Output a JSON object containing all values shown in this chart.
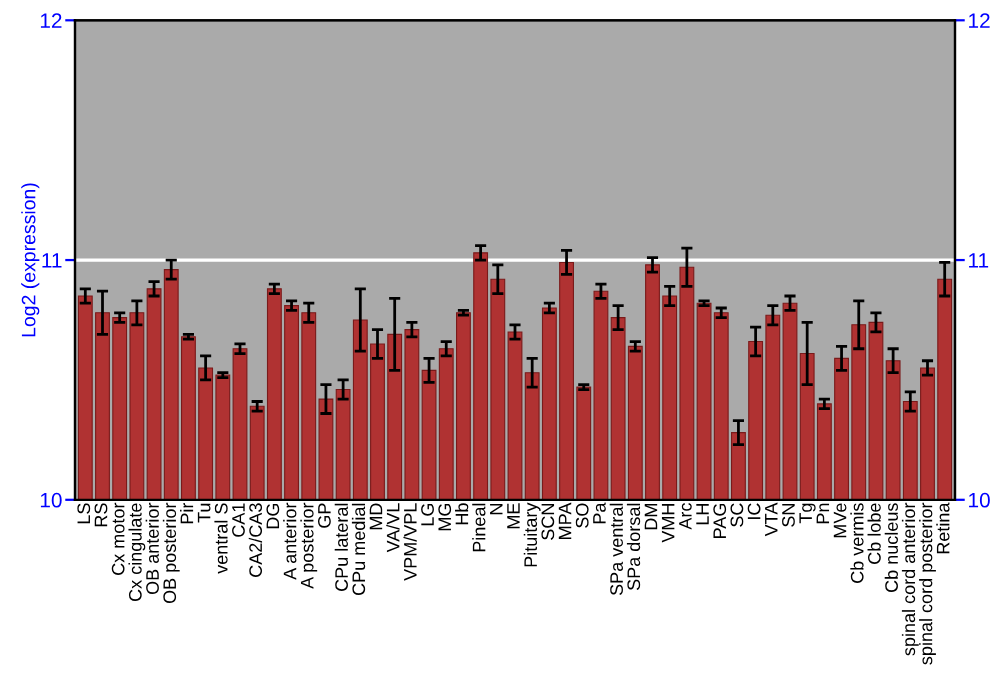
{
  "chart_data": {
    "type": "bar",
    "ylabel": "Log2 (expression)",
    "categories": [
      "LS",
      "RS",
      "Cx motor",
      "Cx cingulate",
      "OB anterior",
      "OB posterior",
      "Pir",
      "Tu",
      "ventral S",
      "CA1",
      "CA2/CA3",
      "DG",
      "A anterior",
      "A posterior",
      "GP",
      "CPu lateral",
      "CPu medial",
      "MD",
      "VA/VL",
      "VPM/VPL",
      "LG",
      "MG",
      "Hb",
      "Pineal",
      "N",
      "ME",
      "Pituitary",
      "SCN",
      "MPA",
      "SO",
      "Pa",
      "SPa ventral",
      "SPa dorsal",
      "DM",
      "VMH",
      "Arc",
      "LH",
      "PAG",
      "SC",
      "IC",
      "VTA",
      "SN",
      "Tg",
      "Pn",
      "MVe",
      "Cb vermis",
      "Cb lobe",
      "Cb nucleus",
      "spinal cord anterior",
      "spinal cord posterior",
      "Retina"
    ],
    "values": [
      10.85,
      10.78,
      10.76,
      10.78,
      10.88,
      10.96,
      10.68,
      10.55,
      10.52,
      10.63,
      10.39,
      10.88,
      10.81,
      10.78,
      10.42,
      10.46,
      10.75,
      10.65,
      10.69,
      10.71,
      10.54,
      10.63,
      10.78,
      11.03,
      10.92,
      10.7,
      10.53,
      10.8,
      10.99,
      10.47,
      10.87,
      10.76,
      10.64,
      10.98,
      10.85,
      10.97,
      10.82,
      10.78,
      10.28,
      10.66,
      10.77,
      10.82,
      10.61,
      10.4,
      10.59,
      10.73,
      10.74,
      10.58,
      10.41,
      10.55,
      10.92
    ],
    "errors": [
      0.03,
      0.09,
      0.02,
      0.05,
      0.03,
      0.04,
      0.01,
      0.05,
      0.01,
      0.02,
      0.02,
      0.02,
      0.02,
      0.04,
      0.06,
      0.04,
      0.13,
      0.06,
      0.15,
      0.03,
      0.05,
      0.03,
      0.01,
      0.03,
      0.06,
      0.03,
      0.06,
      0.02,
      0.05,
      0.01,
      0.03,
      0.05,
      0.02,
      0.03,
      0.04,
      0.08,
      0.01,
      0.02,
      0.05,
      0.06,
      0.04,
      0.03,
      0.13,
      0.02,
      0.05,
      0.1,
      0.04,
      0.05,
      0.04,
      0.03,
      0.07
    ],
    "color": "#b03232",
    "ylim": [
      10,
      12
    ],
    "yticks": [
      10,
      11,
      12
    ],
    "y2lim": [
      10,
      12
    ],
    "y2ticks": [
      10,
      11,
      12
    ],
    "grid": "y"
  }
}
